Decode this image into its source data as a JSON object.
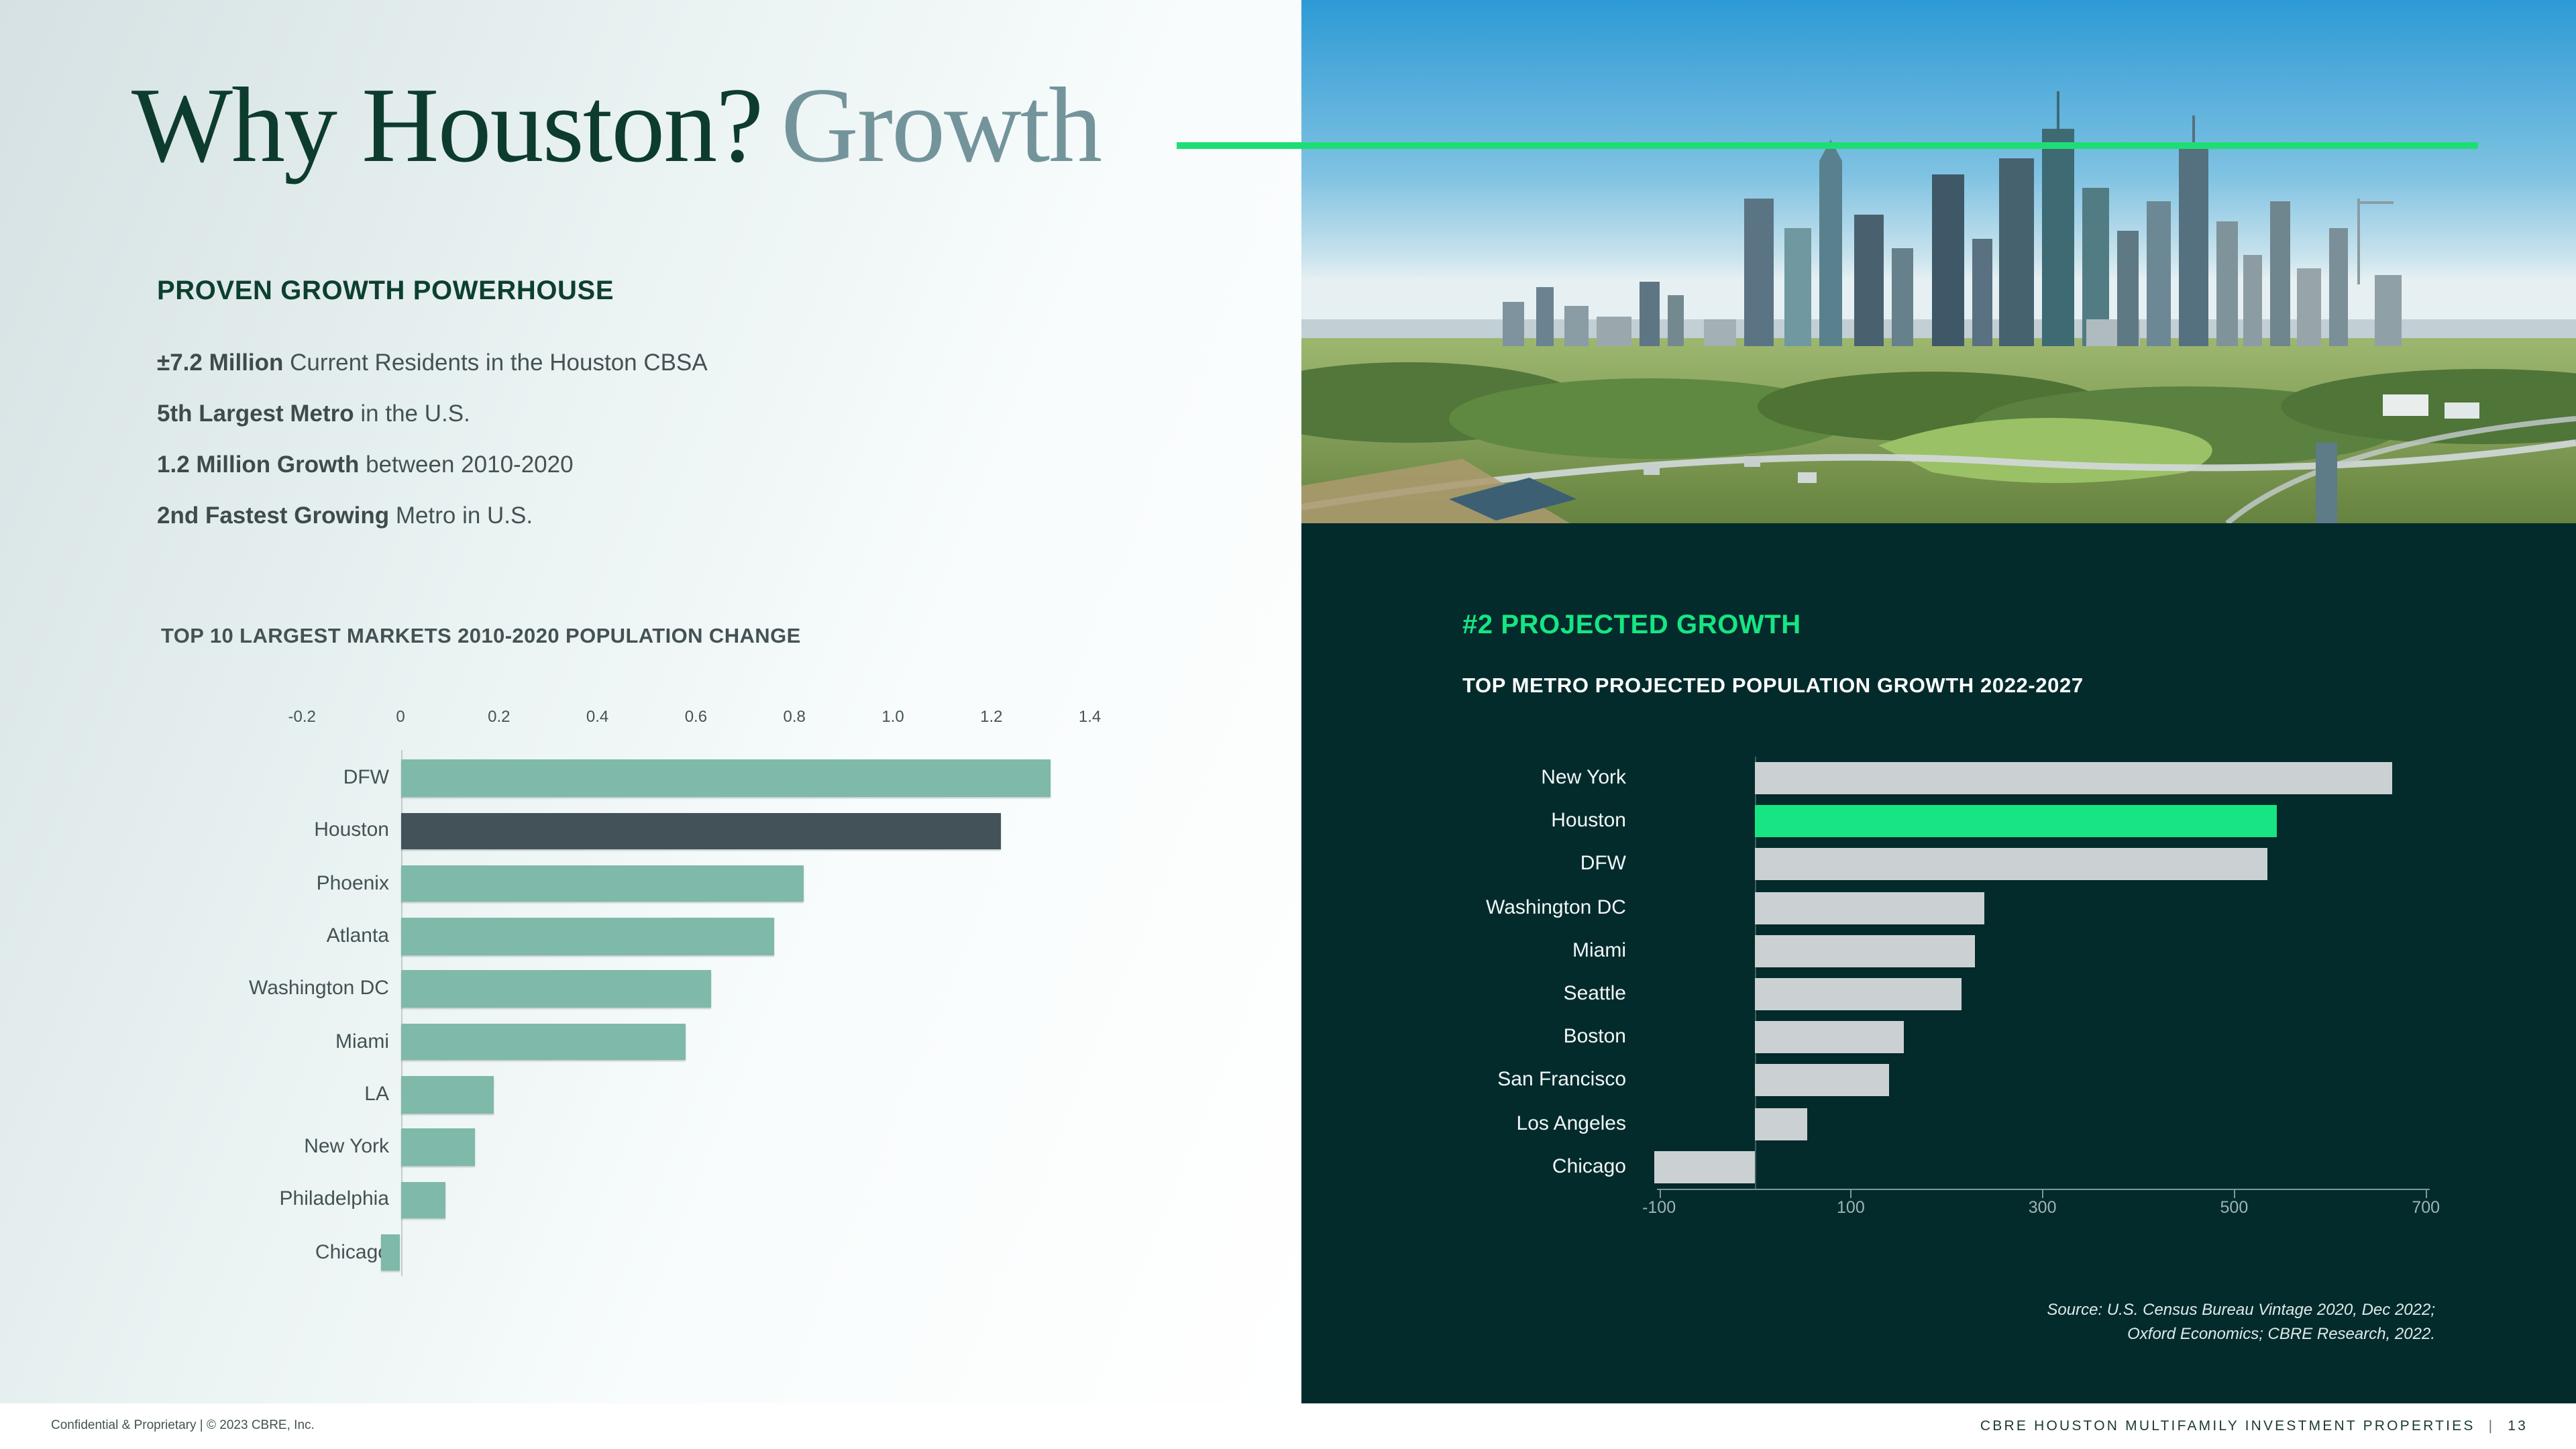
{
  "title": {
    "main": "Why Houston?",
    "accent": "Growth"
  },
  "left": {
    "heading": "PROVEN GROWTH POWERHOUSE",
    "facts": [
      {
        "bold": "±7.2 Million",
        "rest": " Current Residents in the Houston CBSA"
      },
      {
        "bold": "5th Largest Metro",
        "rest": " in the U.S."
      },
      {
        "bold": "1.2 Million Growth",
        "rest": " between 2010-2020"
      },
      {
        "bold": "2nd Fastest Growing",
        "rest": " Metro in U.S."
      }
    ]
  },
  "right": {
    "heading": "#2 PROJECTED GROWTH",
    "source": [
      "Source: U.S. Census Bureau Vintage 2020, Dec 2022;",
      "Oxford Economics; CBRE Research, 2022."
    ]
  },
  "footer": {
    "left": "Confidential & Proprietary  |  © 2023 CBRE, Inc.",
    "right_title": "CBRE HOUSTON MULTIFAMILY INVESTMENT PROPERTIES",
    "right_separator": "|",
    "right_page": "13"
  },
  "colors": {
    "accent_green": "#17E583",
    "title_line_green": "#1FDD75",
    "dark_panel": "#042B2C",
    "sage_bar": "#7FB9A9",
    "slate_bar": "#435159",
    "gray_bar": "#CBD1D3",
    "dark_green_text": "#0D3C2E",
    "muted_title_accent": "#74949B",
    "body_text": "#435254"
  },
  "chart_data": [
    {
      "type": "bar",
      "orientation": "horizontal",
      "title": "TOP 10 LARGEST MARKETS 2010-2020 POPULATION CHANGE",
      "unit": "millions of people",
      "categories": [
        "DFW",
        "Houston",
        "Phoenix",
        "Atlanta",
        "Washington DC",
        "Miami",
        "LA",
        "New York",
        "Philadelphia",
        "Chicago"
      ],
      "values": [
        1.32,
        1.22,
        0.82,
        0.76,
        0.63,
        0.58,
        0.19,
        0.15,
        0.09,
        -0.04
      ],
      "ticks": [
        -0.2,
        0,
        0.2,
        0.4,
        0.6,
        0.8,
        1.0,
        1.2,
        1.4
      ],
      "tick_labels": [
        "-0.2",
        "0",
        "0.2",
        "0.4",
        "0.6",
        "0.8",
        "1.0",
        "1.2",
        "1.4"
      ],
      "xlim": [
        -0.3,
        1.55
      ],
      "grid": false,
      "legend": null,
      "bar_color": "#7FB9A9",
      "highlight_category": "Houston",
      "highlight_color": "#435159"
    },
    {
      "type": "bar",
      "orientation": "horizontal",
      "title": "TOP METRO PROJECTED POPULATION GROWTH 2022-2027",
      "unit": "thousands of people",
      "categories": [
        "New York",
        "Houston",
        "DFW",
        "Washington DC",
        "Miami",
        "Seattle",
        "Boston",
        "San Francisco",
        "Los Angeles",
        "Chicago"
      ],
      "values": [
        665,
        545,
        535,
        240,
        230,
        215,
        155,
        140,
        55,
        -105
      ],
      "ticks": [
        -100,
        100,
        300,
        500,
        700
      ],
      "tick_labels": [
        "-100",
        "100",
        "300",
        "500",
        "700"
      ],
      "xlim": [
        -150,
        760
      ],
      "grid": false,
      "legend": null,
      "bar_color": "#CBD1D3",
      "highlight_category": "Houston",
      "highlight_color": "#17E583"
    }
  ]
}
